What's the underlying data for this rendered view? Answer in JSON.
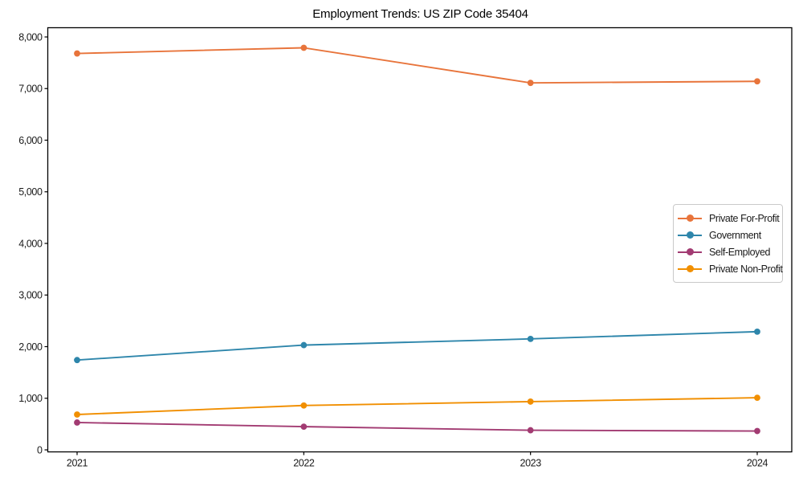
{
  "figure": {
    "background": "#ffffff",
    "spine_color": "#000000",
    "tick_label_color": "#1a1a1a"
  },
  "chart_data": {
    "type": "line",
    "title": "Employment Trends: US ZIP Code 35404",
    "categories": [
      "2021",
      "2022",
      "2023",
      "2024"
    ],
    "series": [
      {
        "name": "Private For-Profit",
        "color": "#E8743B",
        "values": [
          7680,
          7790,
          7110,
          7140
        ]
      },
      {
        "name": "Government",
        "color": "#2E86AB",
        "values": [
          1740,
          2030,
          2150,
          2290
        ]
      },
      {
        "name": "Self-Employed",
        "color": "#A23B72",
        "values": [
          530,
          450,
          380,
          365
        ]
      },
      {
        "name": "Private Non-Profit",
        "color": "#F18F01",
        "values": [
          685,
          860,
          935,
          1010
        ]
      }
    ],
    "xlabel": "",
    "ylabel": "",
    "ylim": [
      0,
      8000
    ],
    "yticks": [
      0,
      1000,
      2000,
      3000,
      4000,
      5000,
      6000,
      7000,
      8000
    ],
    "ytick_labels": [
      "0",
      "1,000",
      "2,000",
      "3,000",
      "4,000",
      "5,000",
      "6,000",
      "7,000",
      "8,000"
    ],
    "grid": false,
    "legend_position": "center-right",
    "marker": "circle",
    "line_width": 1.9,
    "marker_radius": 3.9
  }
}
